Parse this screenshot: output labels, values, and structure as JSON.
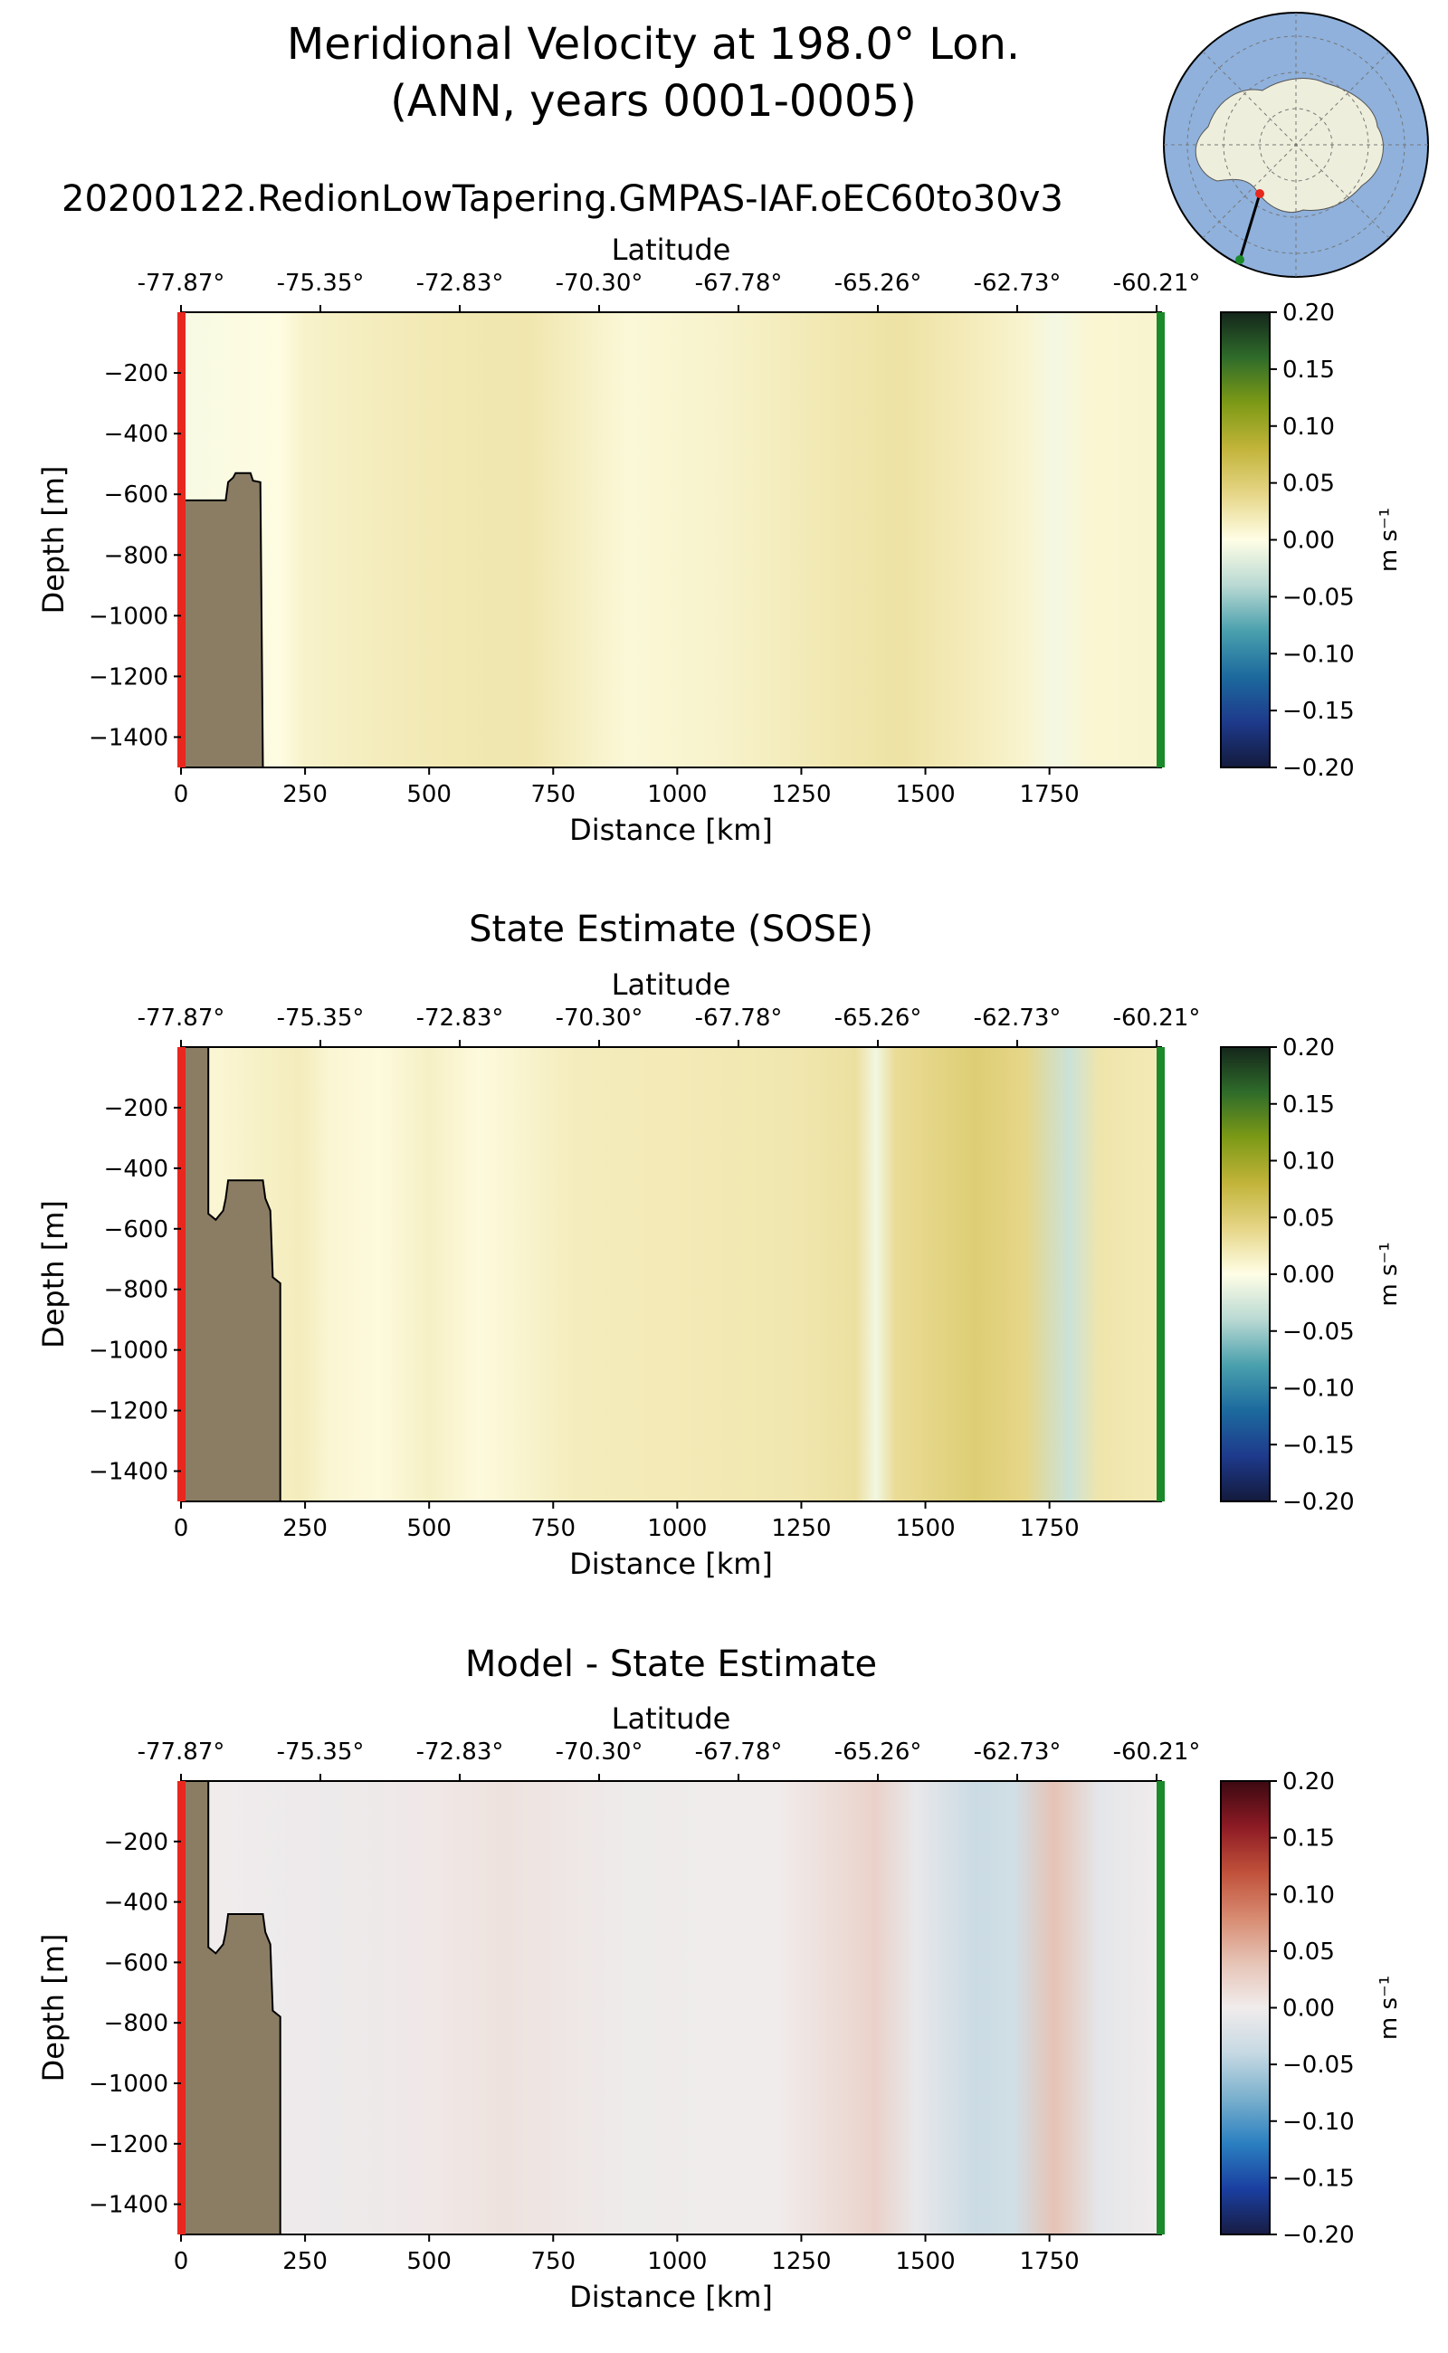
{
  "figure": {
    "title_line1": "Meridional Velocity at 198.0° Lon.",
    "title_line2": "(ANN, years 0001-0005)",
    "run_name": "20200122.RedionLowTapering.GMPAS-IAF.oEC60to30v3"
  },
  "inset_map": {
    "description_icon": "south-polar-map-icon",
    "colors": {
      "ocean": "#8fb1dc",
      "land": "#eeeedc",
      "transect": "#000000",
      "start": "#e8281e",
      "end": "#1a8a2a"
    }
  },
  "colors": {
    "bathymetry": "#8b7d64",
    "start_marker": "#e8281e",
    "end_marker": "#1a8a2a"
  },
  "chart_data": [
    {
      "type": "heatmap",
      "title": "",
      "xlabel": "Distance [km]",
      "ylabel": "Depth [m]",
      "top_xlabel": "Latitude",
      "xlim": [
        0,
        1975
      ],
      "ylim": [
        -1500,
        0
      ],
      "x_ticks": [
        0,
        250,
        500,
        750,
        1000,
        1250,
        1500,
        1750
      ],
      "y_ticks": [
        -200,
        -400,
        -600,
        -800,
        -1000,
        -1200,
        -1400
      ],
      "top_ticks": [
        "-77.87°",
        "-75.35°",
        "-72.83°",
        "-70.30°",
        "-67.78°",
        "-65.26°",
        "-62.73°",
        "-60.21°"
      ],
      "colorbar": {
        "label": "m s⁻¹",
        "min": -0.2,
        "max": 0.2,
        "ticks": [
          "0.20",
          "0.15",
          "0.10",
          "0.05",
          "0.00",
          "−0.05",
          "−0.10",
          "−0.15",
          "−0.20"
        ],
        "colormap": "delta"
      },
      "bathymetry": [
        [
          0,
          -620
        ],
        [
          90,
          -620
        ],
        [
          95,
          -560
        ],
        [
          105,
          -545
        ],
        [
          110,
          -530
        ],
        [
          140,
          -530
        ],
        [
          145,
          -555
        ],
        [
          160,
          -560
        ],
        [
          165,
          -1500
        ],
        [
          0,
          -1500
        ]
      ],
      "column_values": [
        {
          "x": 0,
          "v": -0.004
        },
        {
          "x": 200,
          "v": 0.002
        },
        {
          "x": 250,
          "v": 0.012
        },
        {
          "x": 400,
          "v": 0.018
        },
        {
          "x": 550,
          "v": 0.022
        },
        {
          "x": 700,
          "v": 0.024
        },
        {
          "x": 900,
          "v": 0.006
        },
        {
          "x": 1100,
          "v": 0.012
        },
        {
          "x": 1300,
          "v": 0.022
        },
        {
          "x": 1450,
          "v": 0.028
        },
        {
          "x": 1600,
          "v": 0.018
        },
        {
          "x": 1700,
          "v": 0.01
        },
        {
          "x": 1760,
          "v": -0.006
        },
        {
          "x": 1830,
          "v": 0.008
        },
        {
          "x": 1975,
          "v": 0.01
        }
      ]
    },
    {
      "type": "heatmap",
      "title": "State Estimate (SOSE)",
      "xlabel": "Distance [km]",
      "ylabel": "Depth [m]",
      "top_xlabel": "Latitude",
      "xlim": [
        0,
        1975
      ],
      "ylim": [
        -1500,
        0
      ],
      "x_ticks": [
        0,
        250,
        500,
        750,
        1000,
        1250,
        1500,
        1750
      ],
      "y_ticks": [
        -200,
        -400,
        -600,
        -800,
        -1000,
        -1200,
        -1400
      ],
      "top_ticks": [
        "-77.87°",
        "-75.35°",
        "-72.83°",
        "-70.30°",
        "-67.78°",
        "-65.26°",
        "-62.73°",
        "-60.21°"
      ],
      "colorbar": {
        "label": "m s⁻¹",
        "min": -0.2,
        "max": 0.2,
        "ticks": [
          "0.20",
          "0.15",
          "0.10",
          "0.05",
          "0.00",
          "−0.05",
          "−0.10",
          "−0.15",
          "−0.20"
        ],
        "colormap": "delta"
      },
      "bathymetry": [
        [
          0,
          0
        ],
        [
          55,
          0
        ],
        [
          55,
          -550
        ],
        [
          70,
          -570
        ],
        [
          85,
          -540
        ],
        [
          90,
          -500
        ],
        [
          95,
          -440
        ],
        [
          165,
          -440
        ],
        [
          170,
          -500
        ],
        [
          180,
          -540
        ],
        [
          185,
          -760
        ],
        [
          200,
          -780
        ],
        [
          200,
          -1500
        ],
        [
          0,
          -1500
        ]
      ],
      "column_values": [
        {
          "x": 0,
          "v": 0.004
        },
        {
          "x": 240,
          "v": 0.018
        },
        {
          "x": 300,
          "v": 0.008
        },
        {
          "x": 400,
          "v": 0.004
        },
        {
          "x": 500,
          "v": 0.014
        },
        {
          "x": 600,
          "v": 0.004
        },
        {
          "x": 800,
          "v": 0.018
        },
        {
          "x": 1000,
          "v": 0.02
        },
        {
          "x": 1250,
          "v": 0.024
        },
        {
          "x": 1360,
          "v": 0.03
        },
        {
          "x": 1400,
          "v": -0.008
        },
        {
          "x": 1440,
          "v": 0.034
        },
        {
          "x": 1600,
          "v": 0.05
        },
        {
          "x": 1700,
          "v": 0.04
        },
        {
          "x": 1790,
          "v": -0.03
        },
        {
          "x": 1850,
          "v": 0.025
        },
        {
          "x": 1975,
          "v": 0.02
        }
      ]
    },
    {
      "type": "heatmap",
      "title": "Model - State Estimate",
      "xlabel": "Distance [km]",
      "ylabel": "Depth [m]",
      "top_xlabel": "Latitude",
      "xlim": [
        0,
        1975
      ],
      "ylim": [
        -1500,
        0
      ],
      "x_ticks": [
        0,
        250,
        500,
        750,
        1000,
        1250,
        1500,
        1750
      ],
      "y_ticks": [
        -200,
        -400,
        -600,
        -800,
        -1000,
        -1200,
        -1400
      ],
      "top_ticks": [
        "-77.87°",
        "-75.35°",
        "-72.83°",
        "-70.30°",
        "-67.78°",
        "-65.26°",
        "-62.73°",
        "-60.21°"
      ],
      "colorbar": {
        "label": "m s⁻¹",
        "min": -0.2,
        "max": 0.2,
        "ticks": [
          "0.20",
          "0.15",
          "0.10",
          "0.05",
          "0.00",
          "−0.05",
          "−0.10",
          "−0.15",
          "−0.20"
        ],
        "colormap": "balance"
      },
      "bathymetry": [
        [
          0,
          0
        ],
        [
          55,
          0
        ],
        [
          55,
          -550
        ],
        [
          70,
          -570
        ],
        [
          85,
          -540
        ],
        [
          90,
          -500
        ],
        [
          95,
          -440
        ],
        [
          165,
          -440
        ],
        [
          170,
          -500
        ],
        [
          180,
          -540
        ],
        [
          185,
          -760
        ],
        [
          200,
          -780
        ],
        [
          200,
          -1500
        ],
        [
          0,
          -1500
        ]
      ],
      "column_values": [
        {
          "x": 0,
          "v": 0.0
        },
        {
          "x": 300,
          "v": -0.004
        },
        {
          "x": 500,
          "v": 0.004
        },
        {
          "x": 650,
          "v": 0.01
        },
        {
          "x": 900,
          "v": -0.003
        },
        {
          "x": 1200,
          "v": 0.0
        },
        {
          "x": 1400,
          "v": 0.025
        },
        {
          "x": 1480,
          "v": -0.008
        },
        {
          "x": 1600,
          "v": -0.035
        },
        {
          "x": 1680,
          "v": -0.03
        },
        {
          "x": 1760,
          "v": 0.04
        },
        {
          "x": 1850,
          "v": -0.012
        },
        {
          "x": 1975,
          "v": 0.0
        }
      ]
    }
  ]
}
